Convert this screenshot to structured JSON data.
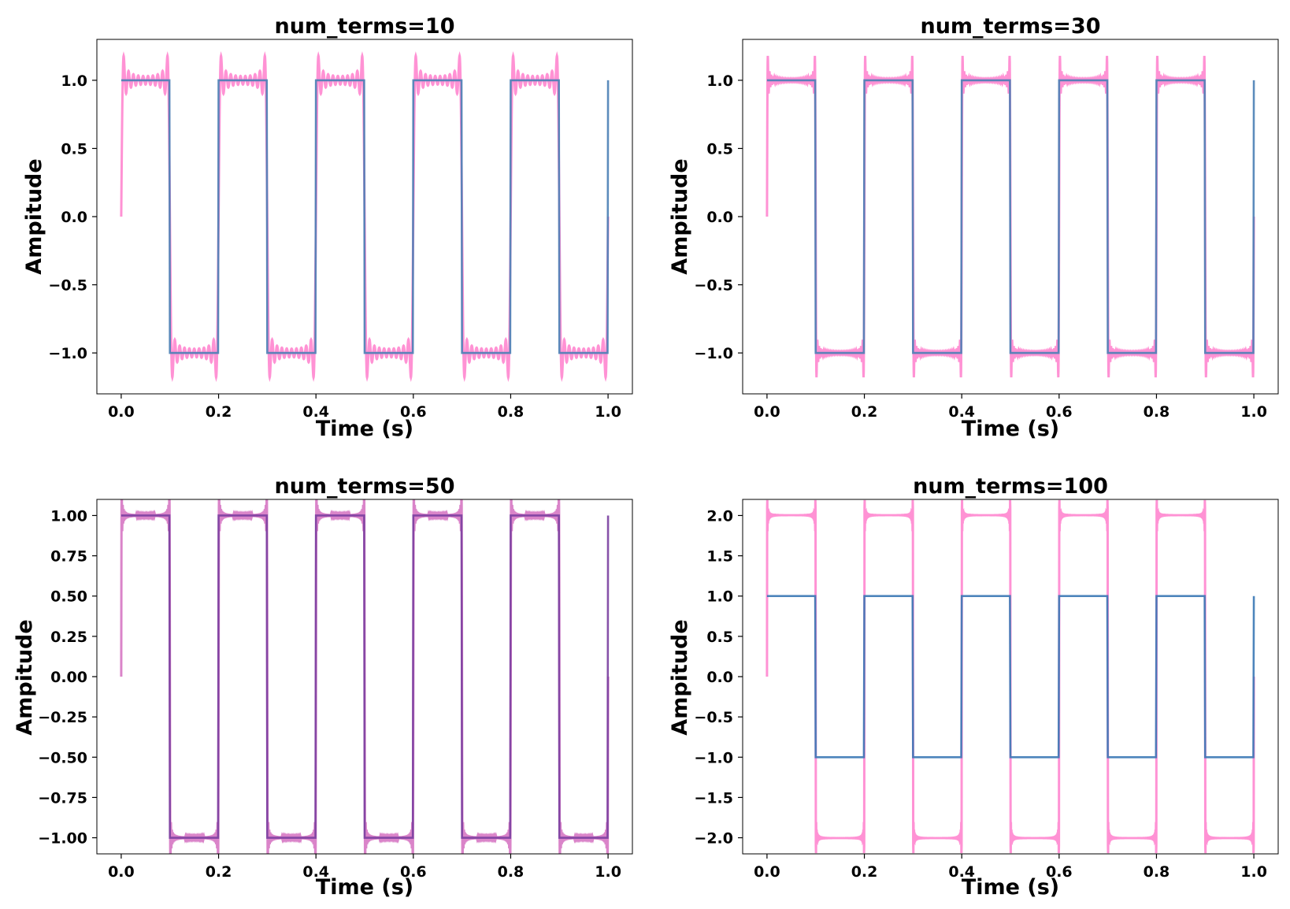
{
  "chart_data": [
    {
      "type": "line",
      "title": "num_terms=10",
      "num_terms": 10,
      "xlabel": "Time (s)",
      "ylabel": "Ampitude",
      "xlim": [
        -0.05,
        1.05
      ],
      "ylim": [
        -1.3,
        1.3
      ],
      "xticks": [
        "0.0",
        "0.2",
        "0.4",
        "0.6",
        "0.8",
        "1.0"
      ],
      "yticks": [
        "−1.0",
        "−0.5",
        "0.0",
        "0.5",
        "1.0"
      ],
      "square_wave": {
        "frequency": 5,
        "amplitude": 1,
        "t_start": 0.0,
        "t_end": 1.0
      },
      "fourier_amplitude": 1,
      "grid": false,
      "series_colors": {
        "square": "#4a7fb5",
        "fourier": "#ff7fcd"
      }
    },
    {
      "type": "line",
      "title": "num_terms=30",
      "num_terms": 30,
      "xlabel": "Time (s)",
      "ylabel": "Ampitude",
      "xlim": [
        -0.05,
        1.05
      ],
      "ylim": [
        -1.3,
        1.3
      ],
      "xticks": [
        "0.0",
        "0.2",
        "0.4",
        "0.6",
        "0.8",
        "1.0"
      ],
      "yticks": [
        "−1.0",
        "−0.5",
        "0.0",
        "0.5",
        "1.0"
      ],
      "square_wave": {
        "frequency": 5,
        "amplitude": 1,
        "t_start": 0.0,
        "t_end": 1.0
      },
      "fourier_amplitude": 1,
      "grid": false,
      "series_colors": {
        "square": "#4a7fb5",
        "fourier": "#ff7fcd"
      }
    },
    {
      "type": "line",
      "title": "num_terms=50",
      "num_terms": 50,
      "xlabel": "Time (s)",
      "ylabel": "Ampitude",
      "xlim": [
        -0.05,
        1.05
      ],
      "ylim": [
        -1.1,
        1.1
      ],
      "xticks": [
        "0.0",
        "0.2",
        "0.4",
        "0.6",
        "0.8",
        "1.0"
      ],
      "yticks": [
        "−1.00",
        "−0.75",
        "−0.50",
        "−0.25",
        "0.00",
        "0.25",
        "0.50",
        "0.75",
        "1.00"
      ],
      "square_wave": {
        "frequency": 5,
        "amplitude": 1,
        "t_start": 0.0,
        "t_end": 1.0
      },
      "fourier_amplitude": 1,
      "grid": false,
      "series_colors": {
        "square": "#7a3fa0",
        "fourier": "#d46fc0"
      }
    },
    {
      "type": "line",
      "title": "num_terms=100",
      "num_terms": 100,
      "xlabel": "Time (s)",
      "ylabel": "Ampitude",
      "xlim": [
        -0.05,
        1.05
      ],
      "ylim": [
        -2.2,
        2.2
      ],
      "xticks": [
        "0.0",
        "0.2",
        "0.4",
        "0.6",
        "0.8",
        "1.0"
      ],
      "yticks": [
        "−2.0",
        "−1.5",
        "−1.0",
        "−0.5",
        "0.0",
        "0.5",
        "1.0",
        "1.5",
        "2.0"
      ],
      "square_wave": {
        "frequency": 5,
        "amplitude": 1,
        "t_start": 0.0,
        "t_end": 1.0
      },
      "fourier_amplitude": 2,
      "grid": false,
      "series_colors": {
        "square": "#3a78b5",
        "fourier": "#ff7fcd"
      }
    }
  ]
}
